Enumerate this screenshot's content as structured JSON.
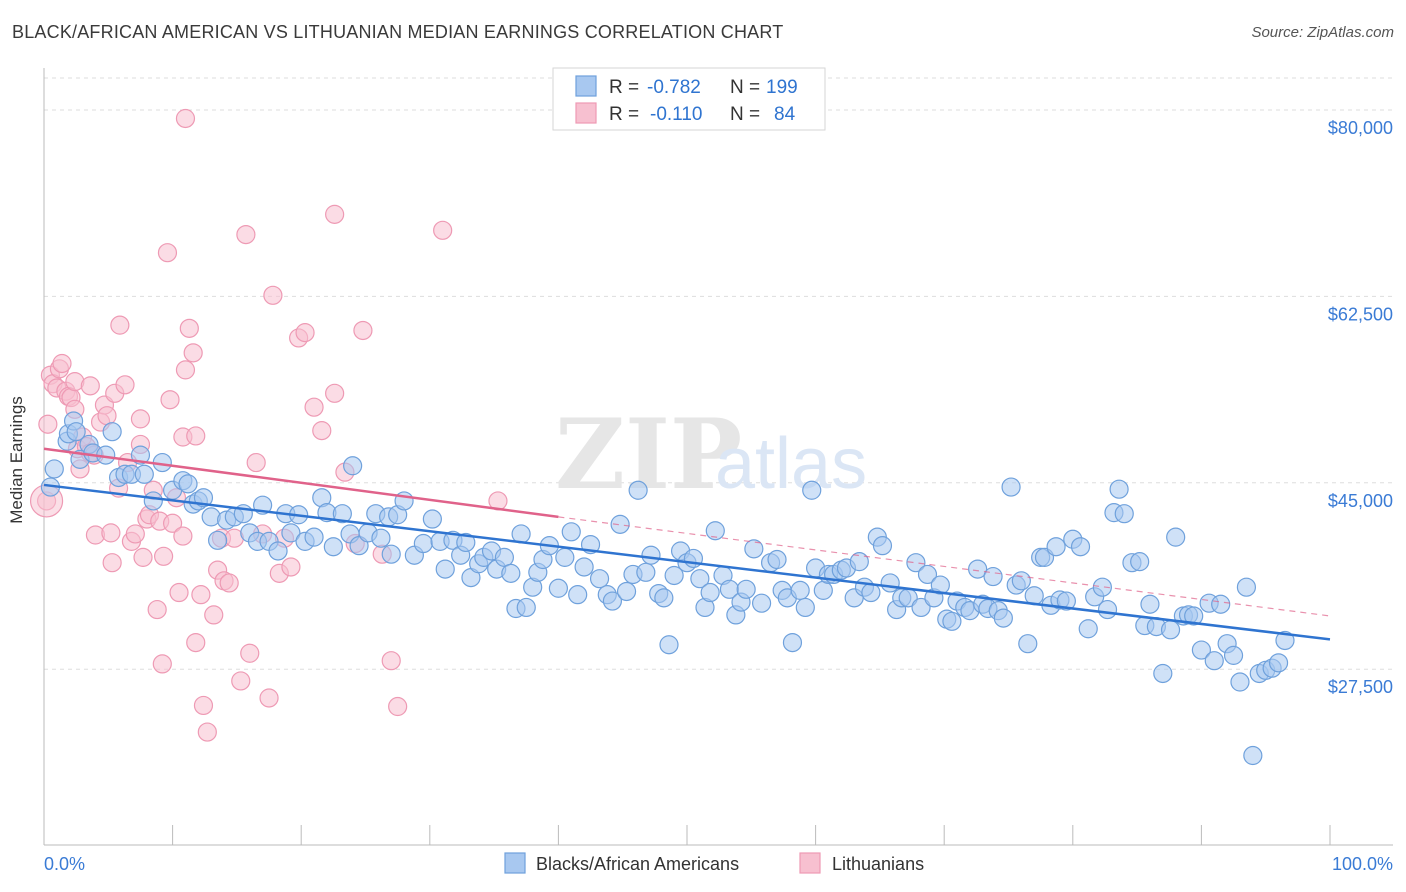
{
  "header": {
    "title": "BLACK/AFRICAN AMERICAN VS LITHUANIAN MEDIAN EARNINGS CORRELATION CHART",
    "source": "Source: ZipAtlas.com"
  },
  "watermark": {
    "part1": "ZIP",
    "part2": "atlas"
  },
  "legend_top": {
    "rows": [
      {
        "r_label": "R =",
        "r_value": "-0.782",
        "n_label": "N =",
        "n_value": "199",
        "color": "#7aaee8"
      },
      {
        "r_label": "R =",
        "r_value": "-0.110",
        "n_label": "N =",
        "n_value": "84",
        "color": "#f4a6be"
      }
    ]
  },
  "colors": {
    "blue_fill": "#a8c8f0",
    "blue_stroke": "#6fa1dc",
    "blue_line": "#2f74d0",
    "pink_fill": "#f7c0d0",
    "pink_stroke": "#ee9ab4",
    "pink_line": "#e0628a",
    "axis_text": "#3a7bd5",
    "grid": "#dddddd"
  },
  "chart_data": {
    "type": "scatter",
    "title": "BLACK/AFRICAN AMERICAN VS LITHUANIAN MEDIAN EARNINGS CORRELATION CHART",
    "xlabel": "",
    "ylabel": "Median Earnings",
    "xlim": [
      0,
      100
    ],
    "ylim": [
      11000,
      83000
    ],
    "x_tick_labels": [
      "0.0%",
      "100.0%"
    ],
    "y_ticks": [
      27500,
      45000,
      62500,
      80000
    ],
    "y_tick_labels": [
      "$27,500",
      "$45,000",
      "$62,500",
      "$80,000"
    ],
    "grid": true,
    "legend_position": "bottom",
    "series": [
      {
        "name": "Blacks/African Americans",
        "trend": {
          "x": [
            0,
            100
          ],
          "y": [
            44800,
            30300
          ],
          "style": "solid"
        },
        "points": [
          [
            0.5,
            44.6
          ],
          [
            0.8,
            46.3
          ],
          [
            1.8,
            48.9
          ],
          [
            1.9,
            49.6
          ],
          [
            2.3,
            50.8
          ],
          [
            2.5,
            49.8
          ],
          [
            2.8,
            47.2
          ],
          [
            3.5,
            48.6
          ],
          [
            3.8,
            47.8
          ],
          [
            4.8,
            47.6
          ],
          [
            5.3,
            49.8
          ],
          [
            5.8,
            45.5
          ],
          [
            6.3,
            45.8
          ],
          [
            6.8,
            45.8
          ],
          [
            7.5,
            47.6
          ],
          [
            7.8,
            45.8
          ],
          [
            8.5,
            43.3
          ],
          [
            9.2,
            46.9
          ],
          [
            10.0,
            44.3
          ],
          [
            10.8,
            45.2
          ],
          [
            11.2,
            44.9
          ],
          [
            11.6,
            43.0
          ],
          [
            12.0,
            43.3
          ],
          [
            12.4,
            43.6
          ],
          [
            13.0,
            41.8
          ],
          [
            13.5,
            39.6
          ],
          [
            14.2,
            41.5
          ],
          [
            14.8,
            41.8
          ],
          [
            15.5,
            42.1
          ],
          [
            16.0,
            40.3
          ],
          [
            16.6,
            39.5
          ],
          [
            17.0,
            42.9
          ],
          [
            17.5,
            39.5
          ],
          [
            18.2,
            38.6
          ],
          [
            18.8,
            42.1
          ],
          [
            19.2,
            40.3
          ],
          [
            19.8,
            42.0
          ],
          [
            20.3,
            39.5
          ],
          [
            21.0,
            39.9
          ],
          [
            21.6,
            43.6
          ],
          [
            22.0,
            42.2
          ],
          [
            22.5,
            39.0
          ],
          [
            23.2,
            42.1
          ],
          [
            23.8,
            40.2
          ],
          [
            24.0,
            46.6
          ],
          [
            24.5,
            39.1
          ],
          [
            25.2,
            40.3
          ],
          [
            25.8,
            42.1
          ],
          [
            26.2,
            39.8
          ],
          [
            26.8,
            41.8
          ],
          [
            27.0,
            38.3
          ],
          [
            27.5,
            42.0
          ],
          [
            28.0,
            43.3
          ],
          [
            28.8,
            38.2
          ],
          [
            29.5,
            39.3
          ],
          [
            30.2,
            41.6
          ],
          [
            30.8,
            39.5
          ],
          [
            31.2,
            36.9
          ],
          [
            31.8,
            39.6
          ],
          [
            32.4,
            38.2
          ],
          [
            32.8,
            39.4
          ],
          [
            33.2,
            36.1
          ],
          [
            33.8,
            37.4
          ],
          [
            34.2,
            38.0
          ],
          [
            34.8,
            38.6
          ],
          [
            35.2,
            36.9
          ],
          [
            35.8,
            38.0
          ],
          [
            36.3,
            36.5
          ],
          [
            36.7,
            33.2
          ],
          [
            37.1,
            40.2
          ],
          [
            37.5,
            33.3
          ],
          [
            38.0,
            35.2
          ],
          [
            38.4,
            36.6
          ],
          [
            38.8,
            37.8
          ],
          [
            39.3,
            39.1
          ],
          [
            40.0,
            35.1
          ],
          [
            40.5,
            38.0
          ],
          [
            41.0,
            40.4
          ],
          [
            41.5,
            34.5
          ],
          [
            42.0,
            37.1
          ],
          [
            42.5,
            39.2
          ],
          [
            43.2,
            36.0
          ],
          [
            43.8,
            34.5
          ],
          [
            44.2,
            33.9
          ],
          [
            44.8,
            41.1
          ],
          [
            45.3,
            34.8
          ],
          [
            45.8,
            36.4
          ],
          [
            46.2,
            44.3
          ],
          [
            46.8,
            36.6
          ],
          [
            47.2,
            38.2
          ],
          [
            47.8,
            34.6
          ],
          [
            48.2,
            34.2
          ],
          [
            48.6,
            29.8
          ],
          [
            49.0,
            36.3
          ],
          [
            49.5,
            38.6
          ],
          [
            50.0,
            37.5
          ],
          [
            50.5,
            37.9
          ],
          [
            51.0,
            36.0
          ],
          [
            51.4,
            33.3
          ],
          [
            51.8,
            34.7
          ],
          [
            52.2,
            40.5
          ],
          [
            52.8,
            36.3
          ],
          [
            53.3,
            35.0
          ],
          [
            53.8,
            32.6
          ],
          [
            54.2,
            33.8
          ],
          [
            54.6,
            35.0
          ],
          [
            55.2,
            38.8
          ],
          [
            55.8,
            33.7
          ],
          [
            56.5,
            37.5
          ],
          [
            57.0,
            37.8
          ],
          [
            57.4,
            34.9
          ],
          [
            57.8,
            34.2
          ],
          [
            58.2,
            30.0
          ],
          [
            58.8,
            34.9
          ],
          [
            59.2,
            33.3
          ],
          [
            59.7,
            44.3
          ],
          [
            60.0,
            37.0
          ],
          [
            60.6,
            34.9
          ],
          [
            61.0,
            36.4
          ],
          [
            61.4,
            36.4
          ],
          [
            62.0,
            36.8
          ],
          [
            62.4,
            37.0
          ],
          [
            63.0,
            34.2
          ],
          [
            63.4,
            37.6
          ],
          [
            63.8,
            35.2
          ],
          [
            64.3,
            34.7
          ],
          [
            64.8,
            39.9
          ],
          [
            65.2,
            39.1
          ],
          [
            65.8,
            35.6
          ],
          [
            66.3,
            33.1
          ],
          [
            66.7,
            34.2
          ],
          [
            67.2,
            34.2
          ],
          [
            67.8,
            37.5
          ],
          [
            68.2,
            33.3
          ],
          [
            68.7,
            36.4
          ],
          [
            69.2,
            34.2
          ],
          [
            69.7,
            35.4
          ],
          [
            70.2,
            32.2
          ],
          [
            70.6,
            32.0
          ],
          [
            71.0,
            33.9
          ],
          [
            71.6,
            33.3
          ],
          [
            72.0,
            33.0
          ],
          [
            72.6,
            36.9
          ],
          [
            73.0,
            33.6
          ],
          [
            73.4,
            33.2
          ],
          [
            73.8,
            36.2
          ],
          [
            74.2,
            33.0
          ],
          [
            74.6,
            32.3
          ],
          [
            75.2,
            44.6
          ],
          [
            75.6,
            35.4
          ],
          [
            76.0,
            35.8
          ],
          [
            76.5,
            29.9
          ],
          [
            77.0,
            34.4
          ],
          [
            77.5,
            38.0
          ],
          [
            77.8,
            38.0
          ],
          [
            78.3,
            33.5
          ],
          [
            78.7,
            39.0
          ],
          [
            79.0,
            34.0
          ],
          [
            79.5,
            33.9
          ],
          [
            80.0,
            39.7
          ],
          [
            80.6,
            39.0
          ],
          [
            81.2,
            31.3
          ],
          [
            81.7,
            34.3
          ],
          [
            82.3,
            35.2
          ],
          [
            82.7,
            33.1
          ],
          [
            83.2,
            42.2
          ],
          [
            83.6,
            44.4
          ],
          [
            84.0,
            42.1
          ],
          [
            84.6,
            37.5
          ],
          [
            85.2,
            37.6
          ],
          [
            85.6,
            31.6
          ],
          [
            86.0,
            33.6
          ],
          [
            86.5,
            31.5
          ],
          [
            87.0,
            27.1
          ],
          [
            87.6,
            31.2
          ],
          [
            88.0,
            39.9
          ],
          [
            88.6,
            32.5
          ],
          [
            89.0,
            32.6
          ],
          [
            89.4,
            32.5
          ],
          [
            90.0,
            29.3
          ],
          [
            90.6,
            33.7
          ],
          [
            91.0,
            28.3
          ],
          [
            91.5,
            33.6
          ],
          [
            92.0,
            29.9
          ],
          [
            92.5,
            28.8
          ],
          [
            93.0,
            26.3
          ],
          [
            93.5,
            35.2
          ],
          [
            94.0,
            19.4
          ],
          [
            94.5,
            27.1
          ],
          [
            95.0,
            27.4
          ],
          [
            95.5,
            27.6
          ],
          [
            96.0,
            28.1
          ],
          [
            96.5,
            30.2
          ]
        ]
      },
      {
        "name": "Lithuanians",
        "trend": {
          "x": [
            0,
            40
          ],
          "y": [
            48200,
            41800
          ],
          "style": "solid"
        },
        "trend_dashed": {
          "x": [
            40,
            100
          ],
          "y": [
            41800,
            32500
          ],
          "style": "dashed"
        },
        "points": [
          [
            0.2,
            43.3
          ],
          [
            0.3,
            50.5
          ],
          [
            0.5,
            55.1
          ],
          [
            0.7,
            54.3
          ],
          [
            1.0,
            53.9
          ],
          [
            1.2,
            55.7
          ],
          [
            1.4,
            56.2
          ],
          [
            1.7,
            53.6
          ],
          [
            1.9,
            53.1
          ],
          [
            2.1,
            53.0
          ],
          [
            2.4,
            54.5
          ],
          [
            2.4,
            51.9
          ],
          [
            2.6,
            48.2
          ],
          [
            2.8,
            46.3
          ],
          [
            3.0,
            49.3
          ],
          [
            3.3,
            48.4
          ],
          [
            3.6,
            54.1
          ],
          [
            3.6,
            47.8
          ],
          [
            3.9,
            47.6
          ],
          [
            4.0,
            40.1
          ],
          [
            4.4,
            50.7
          ],
          [
            4.7,
            52.3
          ],
          [
            4.9,
            51.3
          ],
          [
            5.2,
            40.3
          ],
          [
            5.3,
            37.5
          ],
          [
            5.5,
            53.4
          ],
          [
            5.8,
            44.5
          ],
          [
            5.9,
            59.8
          ],
          [
            6.3,
            54.2
          ],
          [
            6.5,
            46.9
          ],
          [
            6.8,
            39.5
          ],
          [
            7.1,
            40.2
          ],
          [
            7.5,
            51.0
          ],
          [
            7.5,
            48.6
          ],
          [
            7.7,
            38.0
          ],
          [
            8.0,
            41.6
          ],
          [
            8.2,
            42.0
          ],
          [
            8.5,
            44.3
          ],
          [
            8.8,
            33.1
          ],
          [
            9.0,
            41.4
          ],
          [
            9.2,
            28.0
          ],
          [
            9.3,
            38.1
          ],
          [
            9.6,
            66.6
          ],
          [
            9.8,
            52.8
          ],
          [
            10.0,
            41.2
          ],
          [
            10.3,
            43.6
          ],
          [
            10.5,
            34.7
          ],
          [
            10.8,
            40.0
          ],
          [
            10.8,
            49.3
          ],
          [
            11.0,
            55.6
          ],
          [
            11.3,
            59.5
          ],
          [
            11.6,
            57.2
          ],
          [
            11.8,
            30.0
          ],
          [
            11.8,
            49.4
          ],
          [
            12.2,
            34.5
          ],
          [
            12.4,
            24.1
          ],
          [
            12.7,
            21.6
          ],
          [
            13.2,
            32.6
          ],
          [
            13.5,
            36.8
          ],
          [
            13.8,
            39.8
          ],
          [
            14.0,
            35.8
          ],
          [
            14.4,
            35.6
          ],
          [
            14.8,
            39.8
          ],
          [
            15.3,
            26.4
          ],
          [
            15.7,
            68.3
          ],
          [
            16.0,
            29.0
          ],
          [
            16.5,
            46.9
          ],
          [
            17.0,
            40.2
          ],
          [
            17.5,
            24.8
          ],
          [
            17.8,
            62.6
          ],
          [
            18.3,
            36.5
          ],
          [
            18.7,
            39.8
          ],
          [
            19.2,
            37.1
          ],
          [
            19.8,
            58.6
          ],
          [
            20.3,
            59.1
          ],
          [
            21.0,
            52.1
          ],
          [
            21.6,
            49.9
          ],
          [
            22.6,
            53.4
          ],
          [
            22.6,
            70.2
          ],
          [
            23.4,
            46.0
          ],
          [
            24.2,
            39.3
          ],
          [
            24.8,
            59.3
          ],
          [
            26.3,
            38.3
          ],
          [
            27.0,
            28.3
          ],
          [
            27.5,
            24.0
          ],
          [
            31.0,
            68.7
          ],
          [
            35.3,
            43.3
          ],
          [
            11.0,
            79.2
          ]
        ]
      }
    ],
    "point_value_units": {
      "x": "percent",
      "y": "thousands of dollars"
    }
  },
  "legend_bottom": {
    "items": [
      {
        "label": "Blacks/African Americans",
        "color": "#a8c8f0"
      },
      {
        "label": "Lithuanians",
        "color": "#f7c0d0"
      }
    ]
  }
}
